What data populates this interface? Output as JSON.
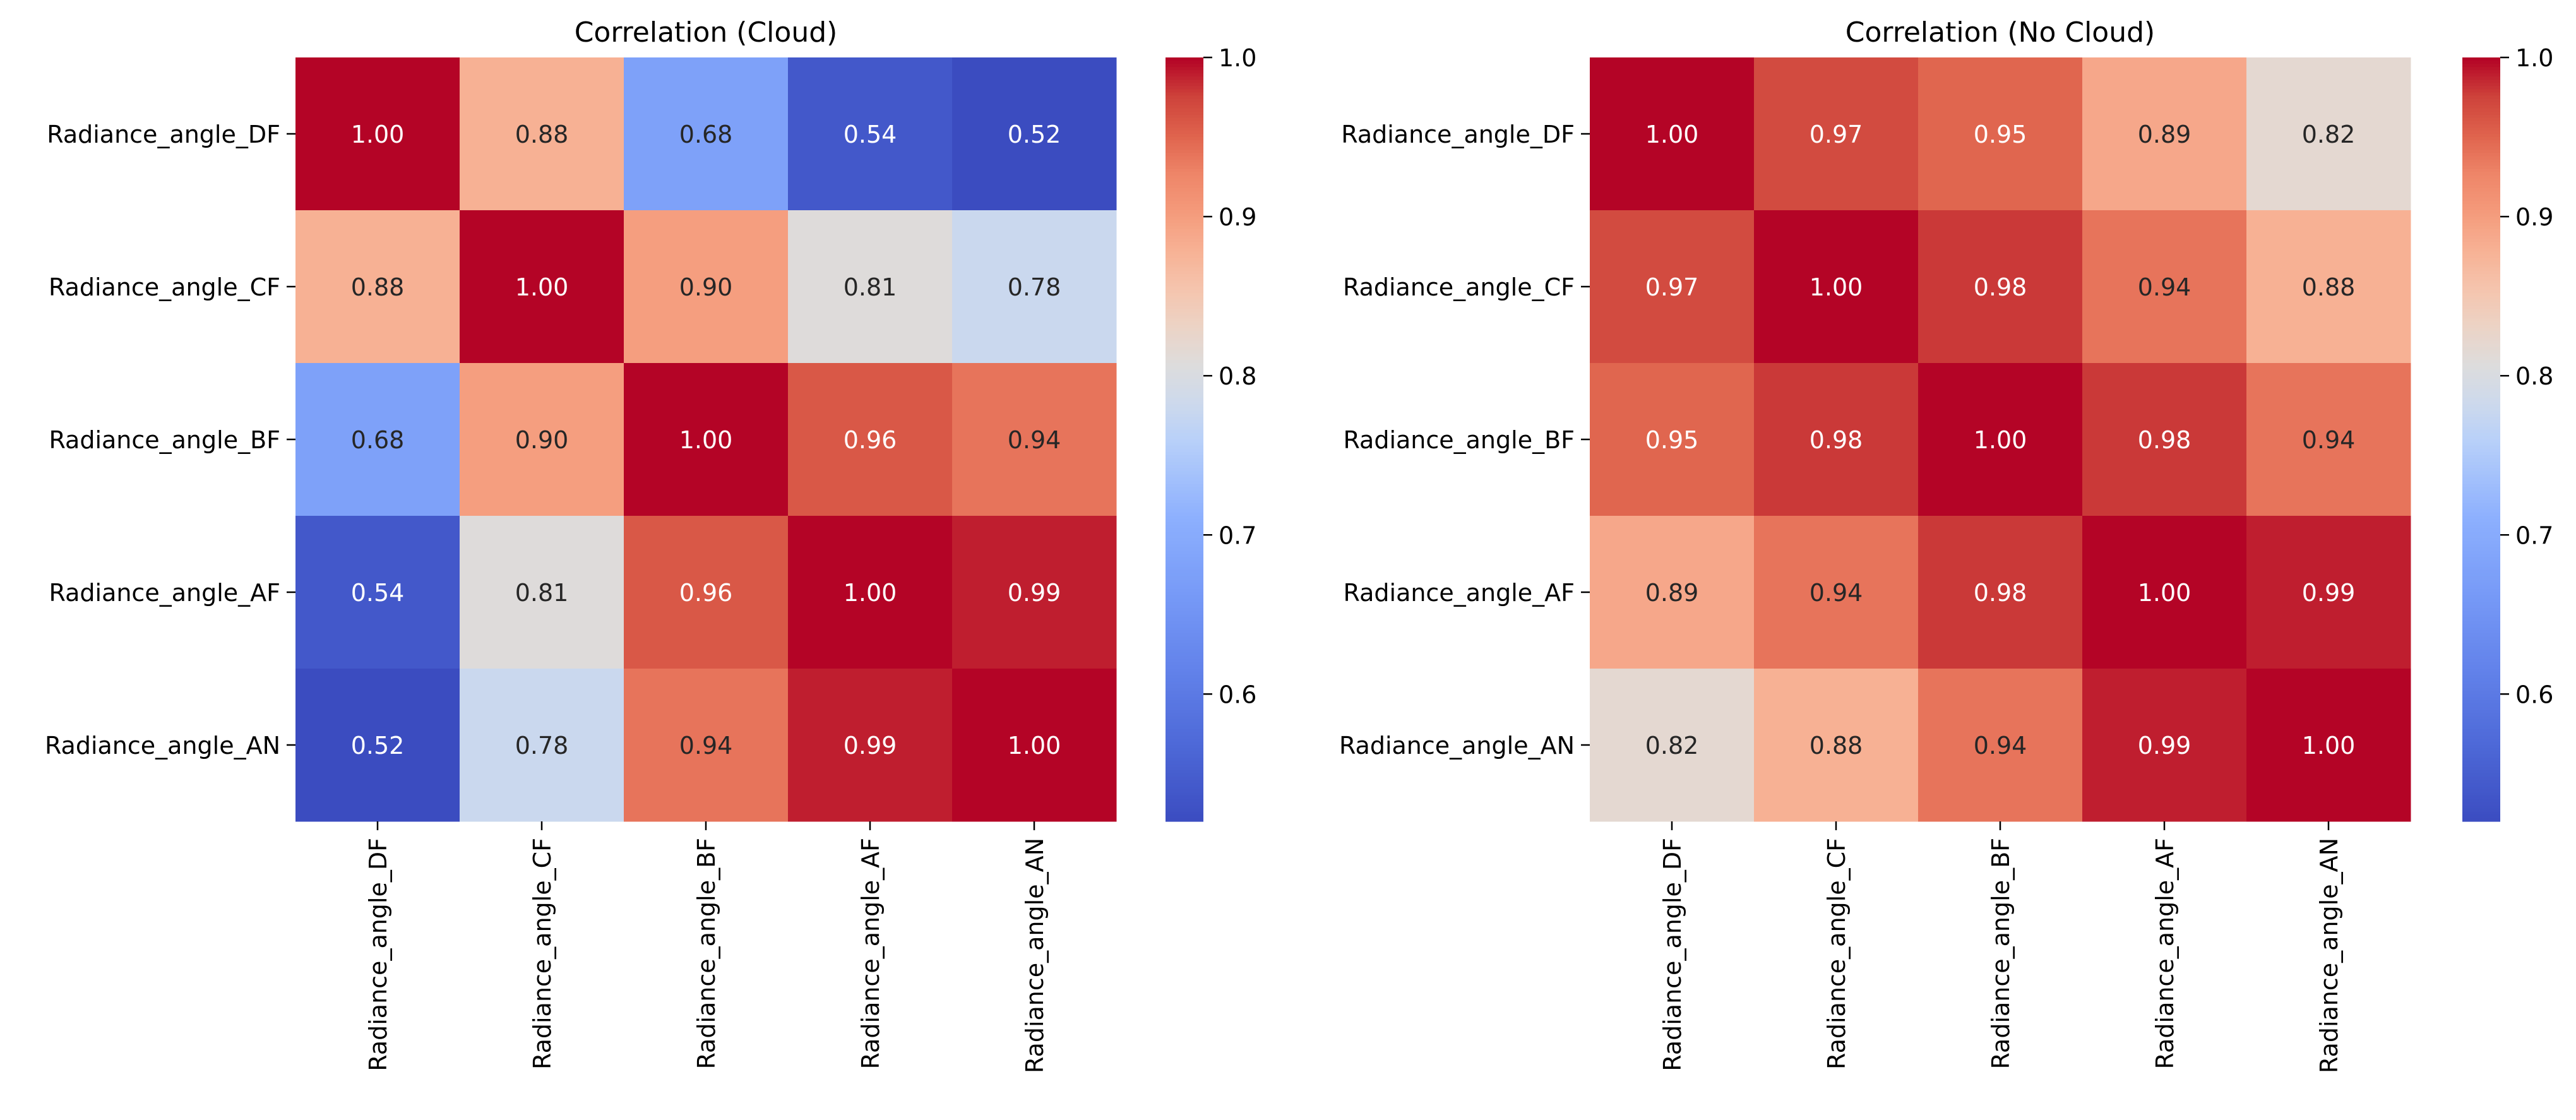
{
  "chart_data": [
    {
      "type": "heatmap",
      "title": "Correlation (Cloud)",
      "rows": [
        "Radiance_angle_DF",
        "Radiance_angle_CF",
        "Radiance_angle_BF",
        "Radiance_angle_AF",
        "Radiance_angle_AN"
      ],
      "columns": [
        "Radiance_angle_DF",
        "Radiance_angle_CF",
        "Radiance_angle_BF",
        "Radiance_angle_AF",
        "Radiance_angle_AN"
      ],
      "values": [
        [
          1.0,
          0.88,
          0.68,
          0.54,
          0.52
        ],
        [
          0.88,
          1.0,
          0.9,
          0.81,
          0.78
        ],
        [
          0.68,
          0.9,
          1.0,
          0.96,
          0.94
        ],
        [
          0.54,
          0.81,
          0.96,
          1.0,
          0.99
        ],
        [
          0.52,
          0.78,
          0.94,
          0.99,
          1.0
        ]
      ],
      "value_format": "0.00",
      "colormap": "coolwarm",
      "color_range": [
        0.52,
        1.0
      ],
      "colorbar_ticks": [
        "0.6",
        "0.7",
        "0.8",
        "0.9",
        "1.0"
      ],
      "colorbar_tick_values": [
        0.6,
        0.7,
        0.8,
        0.9,
        1.0
      ]
    },
    {
      "type": "heatmap",
      "title": "Correlation (No Cloud)",
      "rows": [
        "Radiance_angle_DF",
        "Radiance_angle_CF",
        "Radiance_angle_BF",
        "Radiance_angle_AF",
        "Radiance_angle_AN"
      ],
      "columns": [
        "Radiance_angle_DF",
        "Radiance_angle_CF",
        "Radiance_angle_BF",
        "Radiance_angle_AF",
        "Radiance_angle_AN"
      ],
      "values": [
        [
          1.0,
          0.97,
          0.95,
          0.89,
          0.82
        ],
        [
          0.97,
          1.0,
          0.98,
          0.94,
          0.88
        ],
        [
          0.95,
          0.98,
          1.0,
          0.98,
          0.94
        ],
        [
          0.89,
          0.94,
          0.98,
          1.0,
          0.99
        ],
        [
          0.82,
          0.88,
          0.94,
          0.99,
          1.0
        ]
      ],
      "value_format": "0.00",
      "colormap": "coolwarm",
      "color_range": [
        0.52,
        1.0
      ],
      "colorbar_ticks": [
        "0.6",
        "0.7",
        "0.8",
        "0.9",
        "1.0"
      ],
      "colorbar_tick_values": [
        0.6,
        0.7,
        0.8,
        0.9,
        1.0
      ]
    }
  ]
}
